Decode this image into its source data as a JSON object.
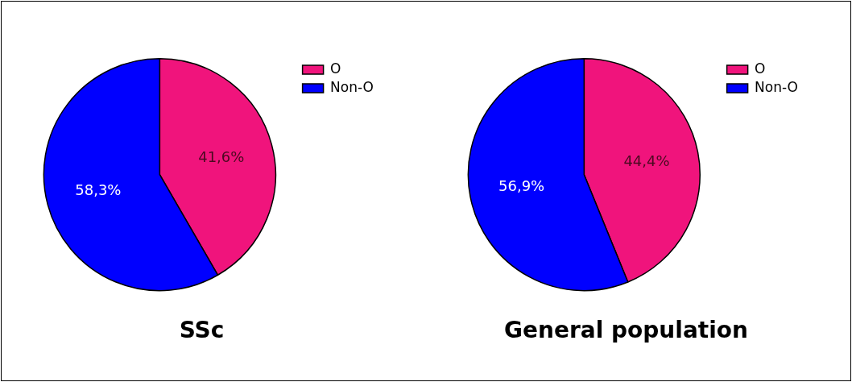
{
  "chart_data": [
    {
      "type": "pie",
      "title": "SSc",
      "categories": [
        "O",
        "Non-O"
      ],
      "values": [
        41.6,
        58.3
      ],
      "colors": [
        "#f0147c",
        "#0000ff"
      ],
      "value_labels": [
        "41,6%",
        "58,3%"
      ],
      "legend": "top right"
    },
    {
      "type": "pie",
      "title": "General population",
      "categories": [
        "O",
        "Non-O"
      ],
      "values": [
        44.4,
        56.9
      ],
      "colors": [
        "#f0147c",
        "#0000ff"
      ],
      "value_labels": [
        "44,4%",
        "56,9%"
      ],
      "legend": "top right"
    }
  ]
}
